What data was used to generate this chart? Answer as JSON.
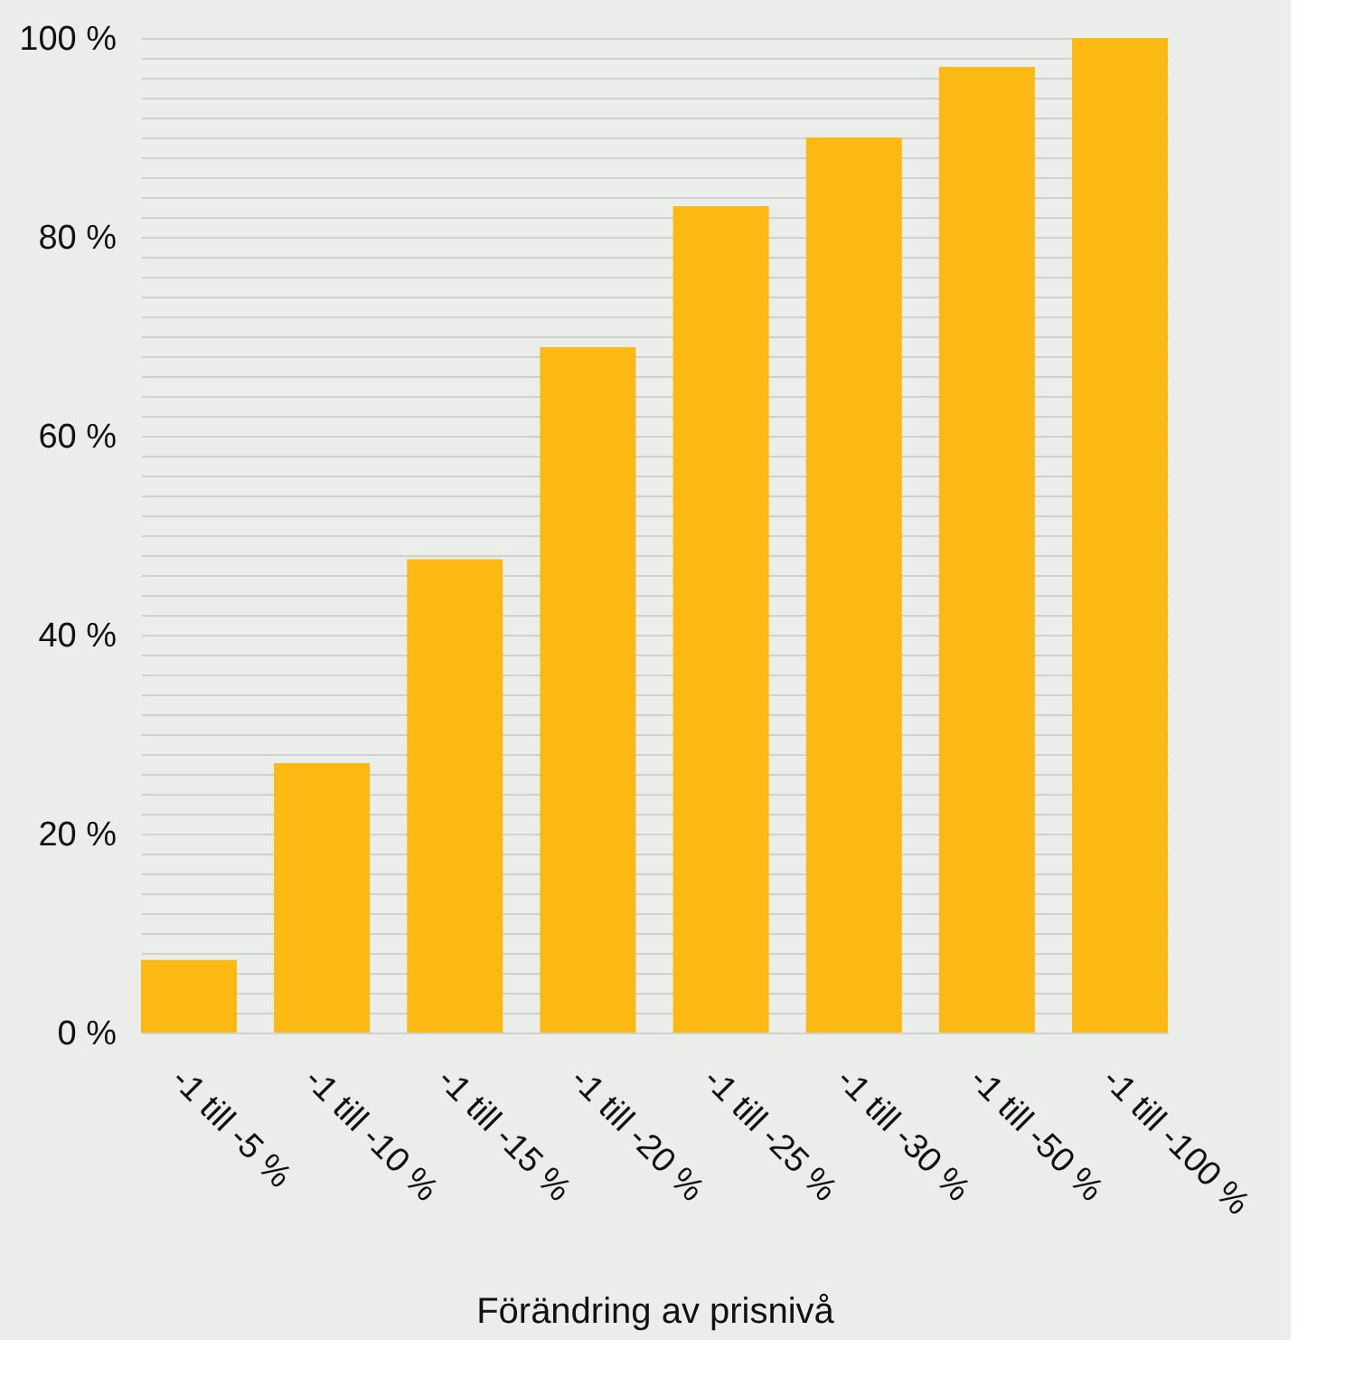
{
  "chart_data": {
    "type": "bar",
    "xlabel": "Förändring av prisnivå",
    "categories": [
      "-1 till -5 %",
      "-1 till -10 %",
      "-1 till -15 %",
      "-1 till -20 %",
      "-1 till -25 %",
      "-1 till -30 %",
      "-1 till -50 %",
      "-1 till -100 %"
    ],
    "values": [
      7.3,
      27.1,
      47.6,
      68.9,
      83.1,
      90.0,
      97.1,
      100
    ],
    "color": "#fcb813",
    "ylim": [
      0,
      100
    ],
    "yticks": [
      {
        "value": 0,
        "label": "0 %"
      },
      {
        "value": 2,
        "label": null
      },
      {
        "value": 4,
        "label": null
      },
      {
        "value": 6,
        "label": null
      },
      {
        "value": 8,
        "label": null
      },
      {
        "value": 10,
        "label": null
      },
      {
        "value": 12,
        "label": null
      },
      {
        "value": 14,
        "label": null
      },
      {
        "value": 16,
        "label": null
      },
      {
        "value": 18,
        "label": null
      },
      {
        "value": 20,
        "label": "20 %"
      },
      {
        "value": 22,
        "label": null
      },
      {
        "value": 24,
        "label": null
      },
      {
        "value": 26,
        "label": null
      },
      {
        "value": 28,
        "label": null
      },
      {
        "value": 30,
        "label": null
      },
      {
        "value": 32,
        "label": null
      },
      {
        "value": 34,
        "label": null
      },
      {
        "value": 36,
        "label": null
      },
      {
        "value": 38,
        "label": null
      },
      {
        "value": 40,
        "label": "40 %"
      },
      {
        "value": 42,
        "label": null
      },
      {
        "value": 44,
        "label": null
      },
      {
        "value": 46,
        "label": null
      },
      {
        "value": 48,
        "label": null
      },
      {
        "value": 50,
        "label": null
      },
      {
        "value": 52,
        "label": null
      },
      {
        "value": 54,
        "label": null
      },
      {
        "value": 56,
        "label": null
      },
      {
        "value": 58,
        "label": null
      },
      {
        "value": 60,
        "label": "60 %"
      },
      {
        "value": 62,
        "label": null
      },
      {
        "value": 64,
        "label": null
      },
      {
        "value": 66,
        "label": null
      },
      {
        "value": 68,
        "label": null
      },
      {
        "value": 70,
        "label": null
      },
      {
        "value": 72,
        "label": null
      },
      {
        "value": 74,
        "label": null
      },
      {
        "value": 76,
        "label": null
      },
      {
        "value": 78,
        "label": null
      },
      {
        "value": 80,
        "label": "80 %"
      },
      {
        "value": 82,
        "label": null
      },
      {
        "value": 84,
        "label": null
      },
      {
        "value": 86,
        "label": null
      },
      {
        "value": 88,
        "label": null
      },
      {
        "value": 90,
        "label": null
      },
      {
        "value": 92,
        "label": null
      },
      {
        "value": 94,
        "label": null
      },
      {
        "value": 96,
        "label": null
      },
      {
        "value": 98,
        "label": null
      },
      {
        "value": 100,
        "label": "100 %"
      }
    ],
    "grid": "y"
  }
}
